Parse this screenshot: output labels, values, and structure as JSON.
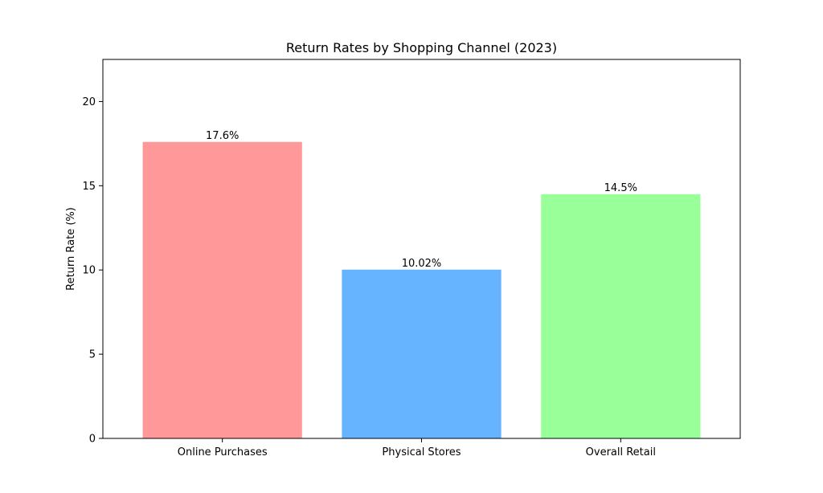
{
  "chart_data": {
    "type": "bar",
    "title": "Return Rates by Shopping Channel (2023)",
    "xlabel": "",
    "ylabel": "Return Rate (%)",
    "categories": [
      "Online Purchases",
      "Physical Stores",
      "Overall Retail"
    ],
    "values": [
      17.6,
      10.02,
      14.5
    ],
    "value_labels": [
      "17.6%",
      "10.02%",
      "14.5%"
    ],
    "colors": [
      "#ff9999",
      "#66b3ff",
      "#99ff99"
    ],
    "ylim": [
      0,
      22.5
    ],
    "yticks": [
      0,
      5,
      10,
      15,
      20
    ],
    "grid": false,
    "legend": false
  }
}
